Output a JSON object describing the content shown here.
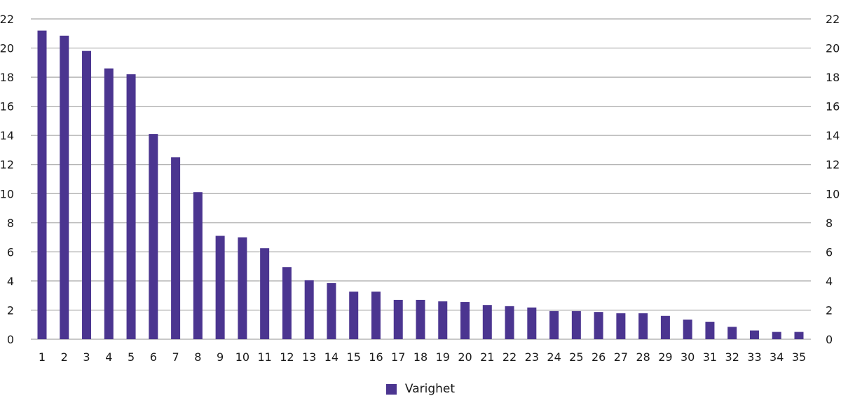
{
  "chart_data": {
    "type": "bar",
    "title": "",
    "xlabel": "",
    "ylabel": "",
    "ylim": [
      0,
      22
    ],
    "yticks": [
      0,
      2,
      4,
      6,
      8,
      10,
      12,
      14,
      16,
      18,
      20,
      22
    ],
    "y_axis_both_sides": true,
    "grid": true,
    "legend_position": "bottom-center",
    "categories": [
      "1",
      "2",
      "3",
      "4",
      "5",
      "6",
      "7",
      "8",
      "9",
      "10",
      "11",
      "12",
      "13",
      "14",
      "15",
      "16",
      "17",
      "18",
      "19",
      "20",
      "21",
      "22",
      "23",
      "24",
      "25",
      "26",
      "27",
      "28",
      "29",
      "30",
      "31",
      "32",
      "33",
      "34",
      "35"
    ],
    "series": [
      {
        "name": "Varighet",
        "color": "#4b3590",
        "values": [
          21.2,
          20.85,
          19.8,
          18.6,
          18.2,
          14.1,
          12.5,
          10.1,
          7.1,
          7.0,
          6.25,
          4.95,
          4.05,
          3.85,
          3.27,
          3.27,
          2.7,
          2.7,
          2.6,
          2.55,
          2.35,
          2.27,
          2.18,
          1.93,
          1.93,
          1.87,
          1.78,
          1.78,
          1.6,
          1.35,
          1.2,
          0.85,
          0.6,
          0.5,
          0.5
        ]
      }
    ]
  },
  "legend": {
    "label": "Varighet",
    "color": "#4b3590"
  },
  "colors": {
    "bar": "#4b3590",
    "grid": "#a8a8a8",
    "text": "#1a1a1a"
  }
}
